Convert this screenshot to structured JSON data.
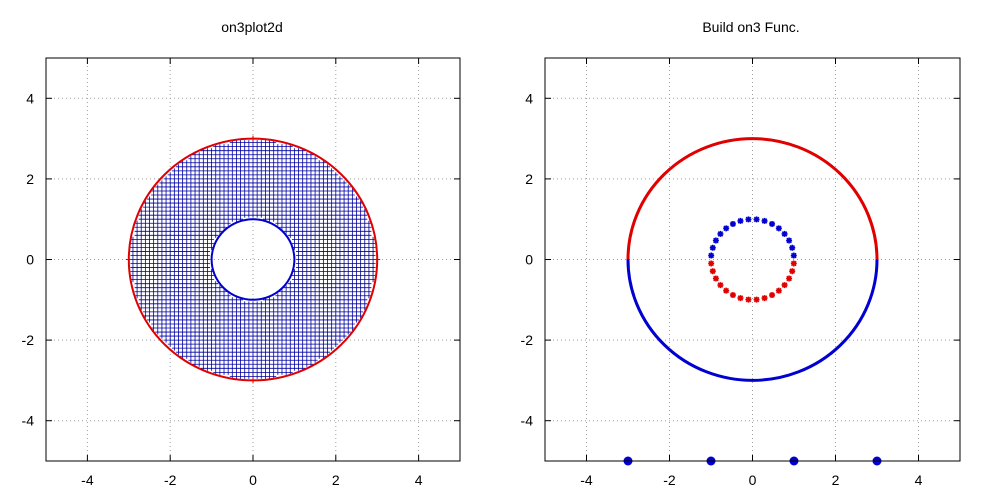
{
  "chart_data": [
    {
      "type": "scatter",
      "title": "on3plot2d",
      "xlim": [
        -5,
        5
      ],
      "ylim": [
        -5,
        5
      ],
      "x_ticks": [
        "-4",
        "-2",
        "0",
        "2",
        "4"
      ],
      "y_ticks": [
        "4",
        "2",
        "0",
        "-2",
        "-4"
      ],
      "x_tick_values": [
        -4,
        -2,
        0,
        2,
        4
      ],
      "y_tick_values": [
        4,
        2,
        0,
        -2,
        -4
      ],
      "grid": true,
      "colors": {
        "outer_boundary": "#e00000",
        "inner_boundary": "#0000d0",
        "mesh_points": "#0000a0"
      },
      "outer_boundary_radius": 3,
      "inner_boundary_radius": 1,
      "mesh_spacing": 0.1,
      "series": [
        {
          "shape": "plus-markers",
          "domain": "annulus",
          "color_key": "mesh_points"
        },
        {
          "shape": "circle",
          "radius": 3,
          "color_key": "outer_boundary"
        },
        {
          "shape": "circle",
          "radius": 1,
          "color_key": "inner_boundary"
        }
      ]
    },
    {
      "type": "scatter",
      "title": "Build on3 Func.",
      "xlim": [
        -5,
        5
      ],
      "ylim": [
        -5,
        5
      ],
      "x_ticks": [
        "-4",
        "-2",
        "0",
        "2",
        "4"
      ],
      "y_ticks": [
        "4",
        "2",
        "0",
        "-2",
        "-4"
      ],
      "x_tick_values": [
        -4,
        -2,
        0,
        2,
        4
      ],
      "y_tick_values": [
        4,
        2,
        0,
        -2,
        -4
      ],
      "grid": true,
      "colors": {
        "red": "#e00000",
        "blue": "#0000d0"
      },
      "outer_circle_radius": 3,
      "inner_circle_radius": 1,
      "inner_star_count": 32,
      "series": [
        {
          "shape": "arc",
          "radius": 3,
          "half": "upper",
          "color_key": "red"
        },
        {
          "shape": "arc",
          "radius": 3,
          "half": "lower",
          "color_key": "blue"
        },
        {
          "shape": "star-markers",
          "radius": 1,
          "half": "upper",
          "color_key": "blue"
        },
        {
          "shape": "star-markers",
          "radius": 1,
          "half": "lower",
          "color_key": "red"
        },
        {
          "shape": "dots",
          "color_key": "blue",
          "x": [
            -3,
            -1,
            1,
            3
          ],
          "y": [
            -5,
            -5,
            -5,
            -5
          ]
        }
      ]
    }
  ]
}
